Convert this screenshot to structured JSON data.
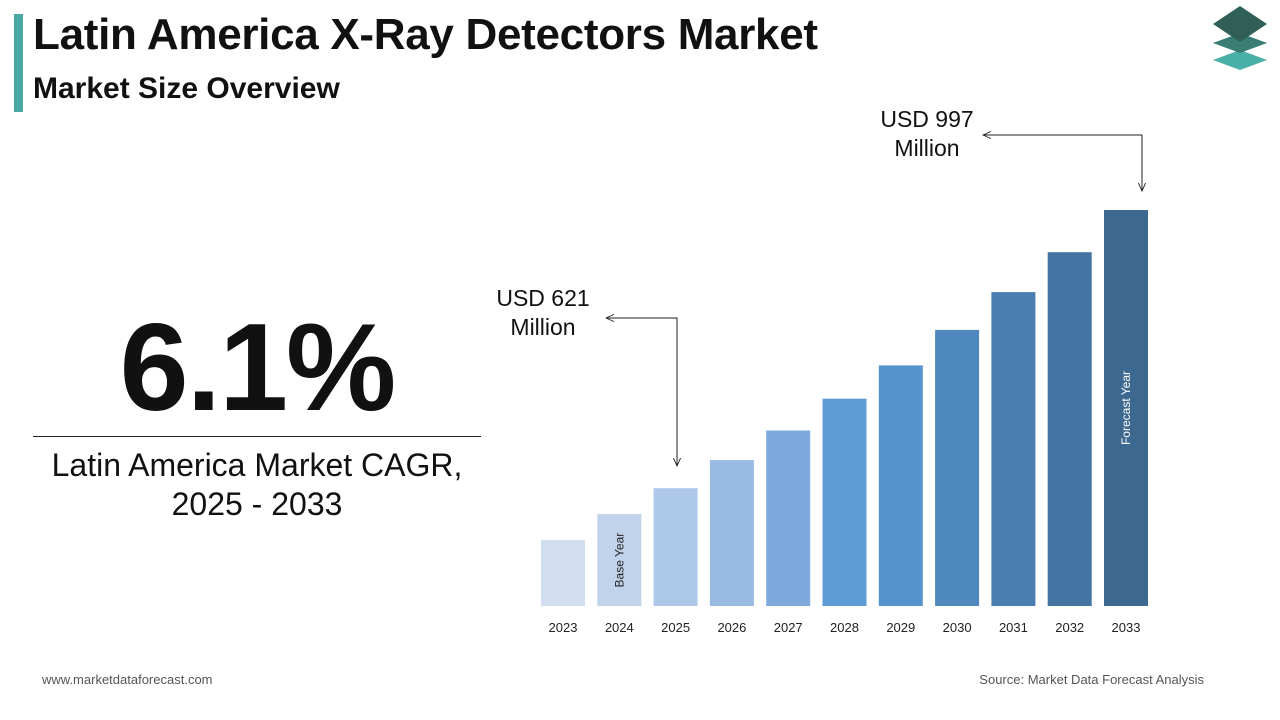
{
  "header": {
    "title": "Latin America X-Ray Detectors Market",
    "subtitle": "Market Size Overview"
  },
  "logo": {
    "icon": "stacked-layers-logo-icon"
  },
  "cagr": {
    "value": "6.1%",
    "label_line1": "Latin America Market CAGR,",
    "label_line2": "2025 - 2033"
  },
  "callouts": {
    "base": {
      "line1": "USD 621",
      "line2": "Million"
    },
    "forecast": {
      "line1": "USD 997",
      "line2": "Million"
    }
  },
  "chart_data": {
    "type": "bar",
    "categories": [
      "2023",
      "2024",
      "2025",
      "2026",
      "2027",
      "2028",
      "2029",
      "2030",
      "2031",
      "2032",
      "2033"
    ],
    "values": [
      551,
      586,
      621,
      659,
      699,
      742,
      787,
      835,
      886,
      940,
      997
    ],
    "annotations": [
      {
        "category": "2024",
        "text": "Base Year"
      },
      {
        "category": "2033",
        "text": "Forecast Year"
      }
    ],
    "colors": [
      "#d1deef",
      "#c0d3ea",
      "#adc8e8",
      "#97bbe2",
      "#7ea9dd",
      "#5f9bd5",
      "#5692cb",
      "#4f88bd",
      "#4a7eb0",
      "#4474a2",
      "#3d6890"
    ],
    "grid": false
  },
  "footer": {
    "website": "www.marketdataforecast.com",
    "source": "Source: Market Data Forecast Analysis"
  }
}
